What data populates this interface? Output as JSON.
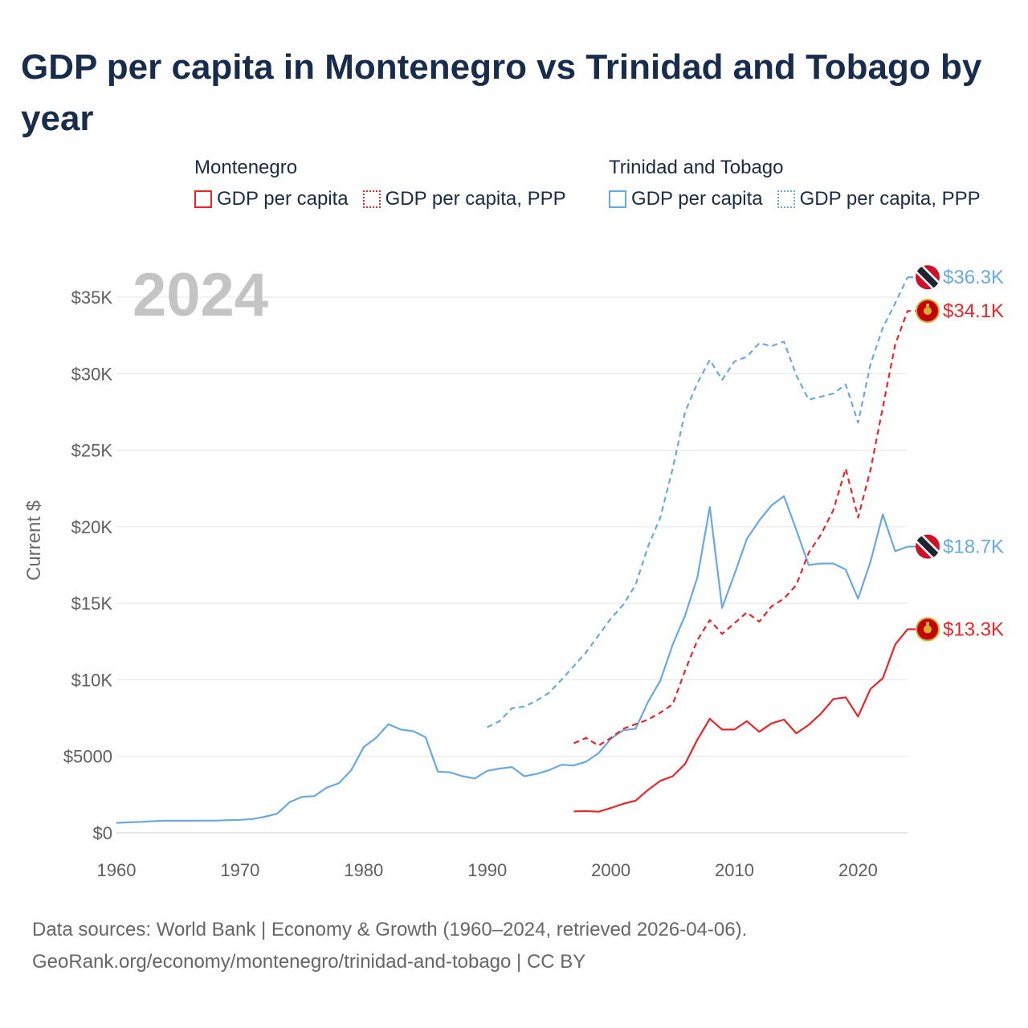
{
  "title": "GDP per capita in Montenegro vs Trinidad and Tobago by year",
  "legend": {
    "groups": [
      {
        "heading": "Montenegro",
        "items": [
          {
            "label": "GDP per capita",
            "color": "#e8262a",
            "style": "solid"
          },
          {
            "label": "GDP per capita, PPP",
            "color": "#e8262a",
            "style": "dotted"
          }
        ]
      },
      {
        "heading": "Trinidad and Tobago",
        "items": [
          {
            "label": "GDP per capita",
            "color": "#6aa8e0",
            "style": "solid"
          },
          {
            "label": "GDP per capita, PPP",
            "color": "#6aa8e0",
            "style": "dotted"
          }
        ]
      }
    ]
  },
  "footer": {
    "source": "Data sources: World Bank | Economy & Growth (1960–2024, retrieved 2026-04-06).",
    "attribution": "GeoRank.org/economy/montenegro/trinidad-and-tobago | CC BY"
  },
  "chart_data": {
    "type": "line",
    "year_watermark": "2024",
    "ylabel": "Current $",
    "xlim": [
      1960,
      2024
    ],
    "ylim": [
      0,
      37000
    ],
    "x_ticks": [
      1960,
      1970,
      1980,
      1990,
      2000,
      2010,
      2020
    ],
    "x_tick_labels": [
      "1960",
      "1970",
      "1980",
      "1990",
      "2000",
      "2010",
      "2020"
    ],
    "y_ticks": [
      0,
      5000,
      10000,
      15000,
      20000,
      25000,
      30000,
      35000
    ],
    "y_tick_labels": [
      "$0",
      "$5000",
      "$10K",
      "$15K",
      "$20K",
      "$25K",
      "$30K",
      "$35K"
    ],
    "series": [
      {
        "name": "Trinidad and Tobago GDP per capita",
        "country": "Trinidad and Tobago",
        "color": "#6aa8e0",
        "dash": "solid",
        "end_label": "$18.7K",
        "start_year": 1960,
        "values": [
          650,
          690,
          720,
          760,
          790,
          790,
          790,
          800,
          800,
          830,
          850,
          900,
          1050,
          1250,
          2000,
          2350,
          2400,
          2950,
          3250,
          4100,
          5600,
          6200,
          7100,
          6750,
          6650,
          6250,
          4000,
          3950,
          3700,
          3550,
          4050,
          4200,
          4300,
          3700,
          3850,
          4100,
          4450,
          4400,
          4650,
          5200,
          6150,
          6700,
          6800,
          8550,
          9950,
          12300,
          14200,
          16700,
          21300,
          14700,
          16900,
          19200,
          20400,
          21400,
          22000,
          19800,
          17500,
          17600,
          17600,
          17200,
          15300,
          17700,
          20800,
          18400,
          18700
        ]
      },
      {
        "name": "Trinidad and Tobago GDP per capita, PPP",
        "country": "Trinidad and Tobago",
        "color": "#6aa8e0",
        "dash": "dashed",
        "end_label": "$36.3K",
        "start_year": 1990,
        "values": [
          6900,
          7300,
          8150,
          8250,
          8650,
          9150,
          10000,
          10900,
          11800,
          12900,
          14000,
          14900,
          16200,
          18700,
          20600,
          23800,
          27500,
          29400,
          30900,
          29600,
          30800,
          31100,
          32000,
          31800,
          32100,
          29900,
          28300,
          28500,
          28700,
          29300,
          26800,
          30600,
          33000,
          34600,
          36300
        ]
      },
      {
        "name": "Montenegro GDP per capita",
        "country": "Montenegro",
        "color": "#e8262a",
        "dash": "solid",
        "end_label": "$13.3K",
        "start_year": 1997,
        "values": [
          1400,
          1420,
          1380,
          1620,
          1900,
          2100,
          2800,
          3400,
          3700,
          4500,
          6100,
          7450,
          6750,
          6750,
          7300,
          6600,
          7150,
          7400,
          6500,
          7050,
          7800,
          8750,
          8850,
          7600,
          9400,
          10100,
          12300,
          13300,
          13300
        ]
      },
      {
        "name": "Montenegro GDP per capita, PPP",
        "country": "Montenegro",
        "color": "#e8262a",
        "dash": "dashed",
        "end_label": "$34.1K",
        "start_year": 1997,
        "values": [
          5850,
          6200,
          5700,
          6200,
          6800,
          7100,
          7400,
          7850,
          8400,
          10600,
          12600,
          13900,
          13000,
          13700,
          14400,
          13800,
          14800,
          15300,
          16200,
          18300,
          19500,
          21100,
          23800,
          20600,
          23700,
          27800,
          31900,
          34100,
          34100
        ]
      }
    ]
  }
}
